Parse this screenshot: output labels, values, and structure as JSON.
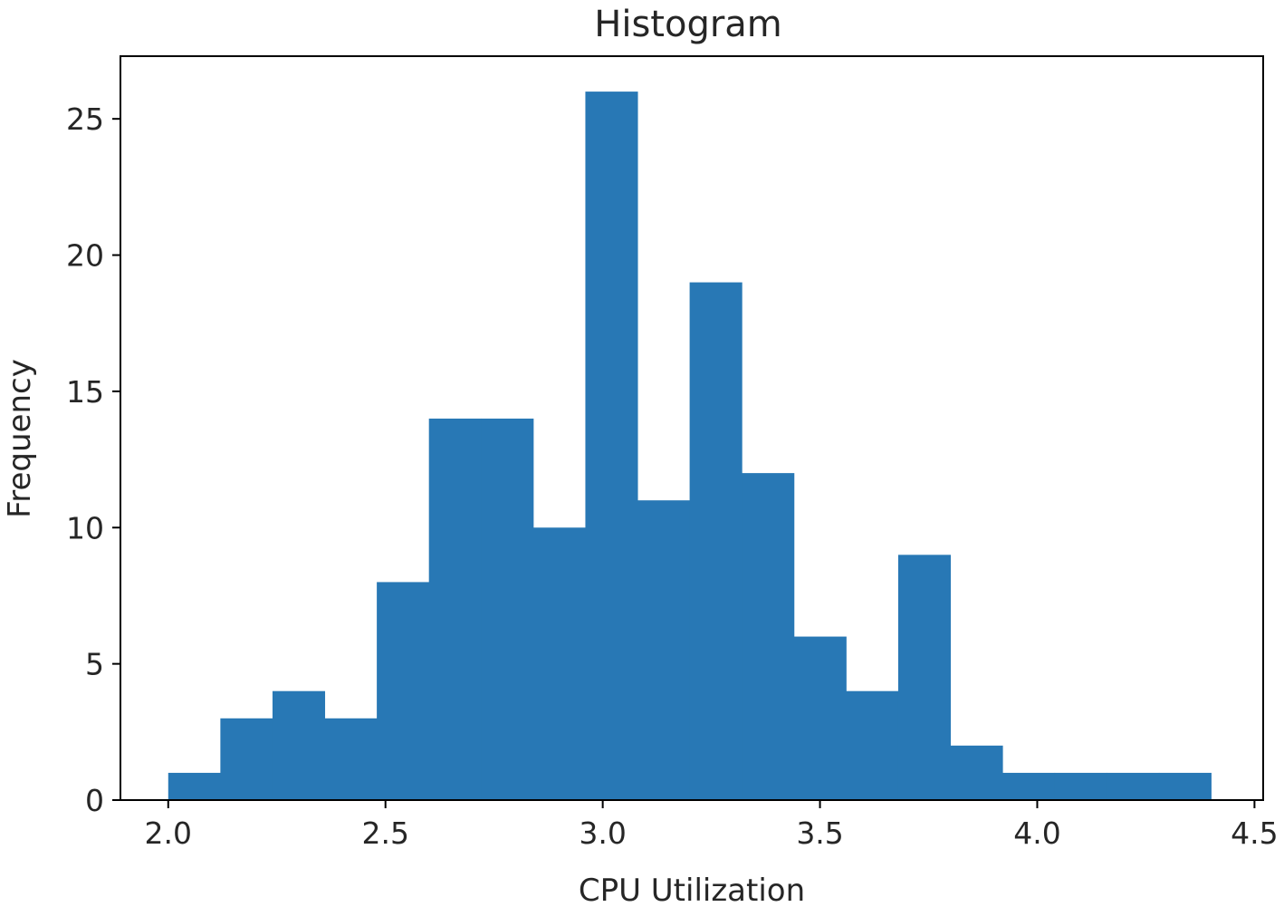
{
  "chart_data": {
    "type": "bar",
    "title": "Histogram",
    "xlabel": "CPU Utilization",
    "ylabel": "Frequency",
    "bar_color": "#2878b5",
    "xlim": [
      1.89,
      4.52
    ],
    "ylim": [
      0,
      27.3
    ],
    "xticks": [
      2.0,
      2.5,
      3.0,
      3.5,
      4.0,
      4.5
    ],
    "xtick_labels": [
      "2.0",
      "2.5",
      "3.0",
      "3.5",
      "4.0",
      "4.5"
    ],
    "yticks": [
      0,
      5,
      10,
      15,
      20,
      25
    ],
    "ytick_labels": [
      "0",
      "5",
      "10",
      "15",
      "20",
      "25"
    ],
    "bins": [
      {
        "x0": 2.0,
        "x1": 2.12,
        "count": 1
      },
      {
        "x0": 2.12,
        "x1": 2.24,
        "count": 3
      },
      {
        "x0": 2.24,
        "x1": 2.36,
        "count": 4
      },
      {
        "x0": 2.36,
        "x1": 2.48,
        "count": 3
      },
      {
        "x0": 2.48,
        "x1": 2.6,
        "count": 8
      },
      {
        "x0": 2.6,
        "x1": 2.72,
        "count": 14
      },
      {
        "x0": 2.72,
        "x1": 2.84,
        "count": 14
      },
      {
        "x0": 2.84,
        "x1": 2.96,
        "count": 10
      },
      {
        "x0": 2.96,
        "x1": 3.08,
        "count": 26
      },
      {
        "x0": 3.08,
        "x1": 3.2,
        "count": 11
      },
      {
        "x0": 3.2,
        "x1": 3.32,
        "count": 19
      },
      {
        "x0": 3.32,
        "x1": 3.44,
        "count": 12
      },
      {
        "x0": 3.44,
        "x1": 3.56,
        "count": 6
      },
      {
        "x0": 3.56,
        "x1": 3.68,
        "count": 4
      },
      {
        "x0": 3.68,
        "x1": 3.8,
        "count": 9
      },
      {
        "x0": 3.8,
        "x1": 3.92,
        "count": 2
      },
      {
        "x0": 3.92,
        "x1": 4.04,
        "count": 1
      },
      {
        "x0": 4.04,
        "x1": 4.16,
        "count": 1
      },
      {
        "x0": 4.16,
        "x1": 4.28,
        "count": 1
      },
      {
        "x0": 4.28,
        "x1": 4.4,
        "count": 1
      }
    ]
  }
}
